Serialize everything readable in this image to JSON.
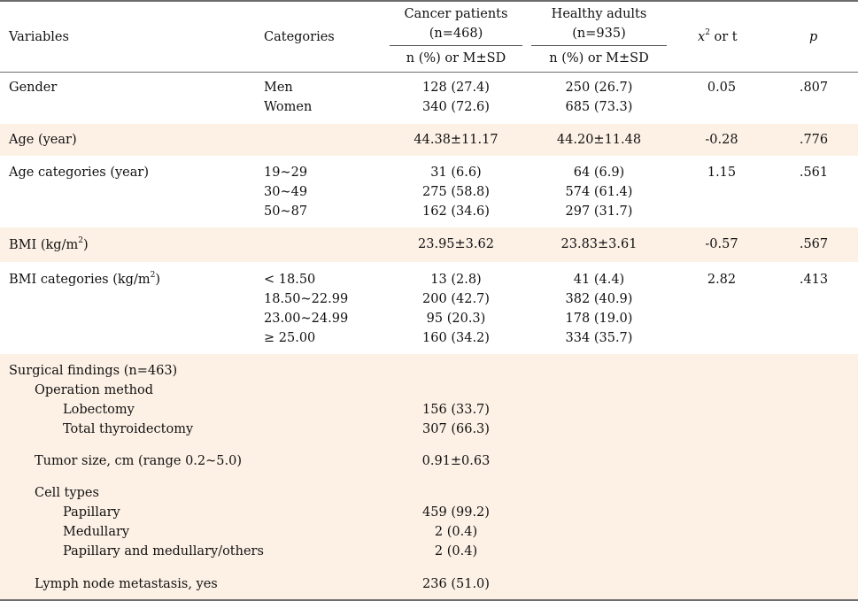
{
  "header": {
    "variables": "Variables",
    "categories": "Categories",
    "cancer_title": "Cancer patients",
    "cancer_n": "(n=468)",
    "healthy_title": "Healthy adults",
    "healthy_n": "(n=935)",
    "stat_x": "x",
    "stat_sup": "2",
    "stat_rest": " or t",
    "p": "p",
    "sub_cancer": "n (%) or M±SD",
    "sub_healthy": "n (%) or M±SD"
  },
  "rows": {
    "gender": {
      "label": "Gender",
      "cats": [
        "Men",
        "Women"
      ],
      "cancer": [
        "128 (27.4)",
        "340 (72.6)"
      ],
      "healthy": [
        "250 (26.7)",
        "685 (73.3)"
      ],
      "stat": "0.05",
      "p": ".807"
    },
    "age": {
      "label": "Age (year)",
      "cancer": "44.38±11.17",
      "healthy": "44.20±11.48",
      "stat": "-0.28",
      "p": ".776"
    },
    "agecat": {
      "label": "Age categories (year)",
      "cats": [
        "19~29",
        "30~49",
        "50~87"
      ],
      "cancer": [
        "31 (6.6)",
        "275 (58.8)",
        "162 (34.6)"
      ],
      "healthy": [
        "64 (6.9)",
        "574 (61.4)",
        "297 (31.7)"
      ],
      "stat": "1.15",
      "p": ".561"
    },
    "bmi": {
      "label_pre": "BMI (kg/m",
      "label_sup": "2",
      "label_post": ")",
      "cancer": "23.95±3.62",
      "healthy": "23.83±3.61",
      "stat": "-0.57",
      "p": ".567"
    },
    "bmicat": {
      "label_pre": "BMI categories (kg/m",
      "label_sup": "2",
      "label_post": ")",
      "cats": [
        "< 18.50",
        "18.50~22.99",
        "23.00~24.99",
        "≥ 25.00"
      ],
      "cancer": [
        "13 (2.8)",
        "200 (42.7)",
        "95 (20.3)",
        "160 (34.2)"
      ],
      "healthy": [
        "41 (4.4)",
        "382 (40.9)",
        "178 (19.0)",
        "334 (35.7)"
      ],
      "stat": "2.82",
      "p": ".413"
    },
    "surgical": {
      "label": "Surgical findings (n=463)",
      "operation": "Operation method",
      "lobectomy": "Lobectomy",
      "lobectomy_val": "156 (33.7)",
      "total": "Total thyroidectomy",
      "total_val": "307 (66.3)",
      "tumor": "Tumor size, cm (range 0.2~5.0)",
      "tumor_val": "0.91±0.63",
      "cell": "Cell types",
      "papillary": "Papillary",
      "papillary_val": "459 (99.2)",
      "medullary": "Medullary",
      "medullary_val": "2 (0.4)",
      "papmed": "Papillary and medullary/others",
      "papmed_val": "2 (0.4)",
      "lymph": "Lymph node metastasis, yes",
      "lymph_val": "236 (51.0)"
    }
  }
}
